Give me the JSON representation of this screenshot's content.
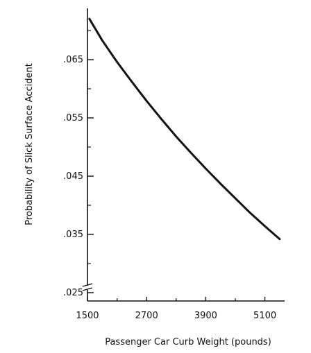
{
  "chart_data": {
    "type": "line",
    "xlabel": "Passenger Car Curb Weight (pounds)",
    "ylabel": "Probability of Slick Surface Accident",
    "xlim": [
      1500,
      5500
    ],
    "ylim": [
      0.025,
      0.073
    ],
    "x_ticks": [
      1500,
      2700,
      3900,
      5100
    ],
    "x_tick_labels": [
      "1500",
      "2700",
      "3900",
      "5100"
    ],
    "y_ticks": [
      0.025,
      0.035,
      0.045,
      0.055,
      0.065
    ],
    "y_tick_labels": [
      ".025",
      ".035",
      ".045",
      ".055",
      ".065"
    ],
    "axis_break": "y-axis near bottom",
    "series": [
      {
        "x": [
          1540,
          1800,
          2100,
          2400,
          2700,
          3000,
          3300,
          3600,
          3900,
          4200,
          4500,
          4800,
          5100,
          5400
        ],
        "y": [
          0.072,
          0.0683,
          0.0646,
          0.0612,
          0.0579,
          0.0548,
          0.0518,
          0.049,
          0.0463,
          0.0437,
          0.0412,
          0.0387,
          0.0364,
          0.0342
        ],
        "color": "#111111"
      }
    ]
  }
}
